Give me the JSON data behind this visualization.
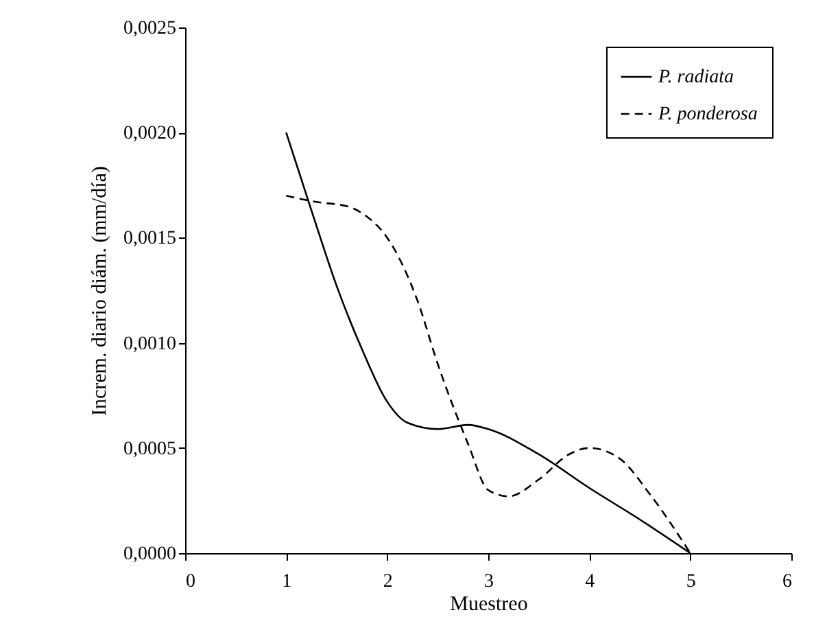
{
  "chart_data": {
    "type": "line",
    "xlabel": "Muestreo",
    "ylabel": "Increm. diario diám. (mm/día)",
    "xlim": [
      0,
      6
    ],
    "xticks": [
      0,
      1,
      2,
      3,
      4,
      5,
      6
    ],
    "ylim": [
      0,
      0.0025
    ],
    "yticks": [
      {
        "value": 0,
        "label": "0,0000"
      },
      {
        "value": 0.0005,
        "label": "0,0005"
      },
      {
        "value": 0.001,
        "label": "0,0010"
      },
      {
        "value": 0.0015,
        "label": "0,0015"
      },
      {
        "value": 0.002,
        "label": "0,0020"
      },
      {
        "value": 0.0025,
        "label": "0,0025"
      }
    ],
    "grid": false,
    "legend": "top right",
    "marker": "none",
    "series": [
      {
        "name": "P. radiata",
        "color": "#000000",
        "line_style": "solid",
        "x": [
          1,
          1.25,
          1.5,
          1.75,
          2,
          2.2,
          2.5,
          2.8,
          3,
          3.5,
          4,
          4.5,
          5
        ],
        "values": [
          0.002,
          0.00163,
          0.00127,
          0.00097,
          0.00072,
          0.00062,
          0.00059,
          0.00061,
          0.00059,
          0.00047,
          0.00031,
          0.00016,
          0
        ]
      },
      {
        "name": "P. ponderosa",
        "color": "#000000",
        "line_style": "dashed",
        "x": [
          1,
          1.3,
          1.6,
          1.8,
          2,
          2.3,
          2.5,
          2.8,
          3,
          3.2,
          3.5,
          3.8,
          4,
          4.3,
          4.6,
          5
        ],
        "values": [
          0.0017,
          0.00167,
          0.00165,
          0.0016,
          0.0015,
          0.0012,
          0.0009,
          0.00052,
          0.0003,
          0.00027,
          0.00035,
          0.00047,
          0.0005,
          0.00045,
          0.00028,
          0
        ]
      }
    ]
  }
}
